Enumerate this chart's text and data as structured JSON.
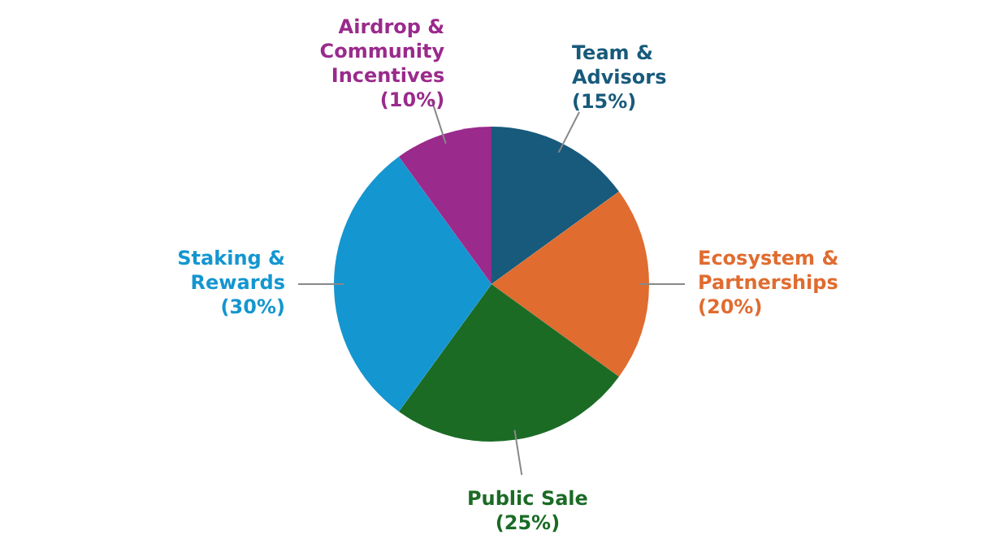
{
  "chart_data": {
    "type": "pie",
    "categories": [
      "Team & Advisors",
      "Ecosystem & Partnerships",
      "Public Sale",
      "Staking & Rewards",
      "Airdrop & Community Incentives"
    ],
    "values": [
      15,
      20,
      25,
      30,
      10
    ],
    "value_labels": [
      "(15%)",
      "(20%)",
      "(25%)",
      "(30%)",
      "(10%)"
    ],
    "colors": [
      "#175a7c",
      "#e06c30",
      "#1b6b25",
      "#1496d0",
      "#9a2a8c"
    ],
    "legend": false
  }
}
